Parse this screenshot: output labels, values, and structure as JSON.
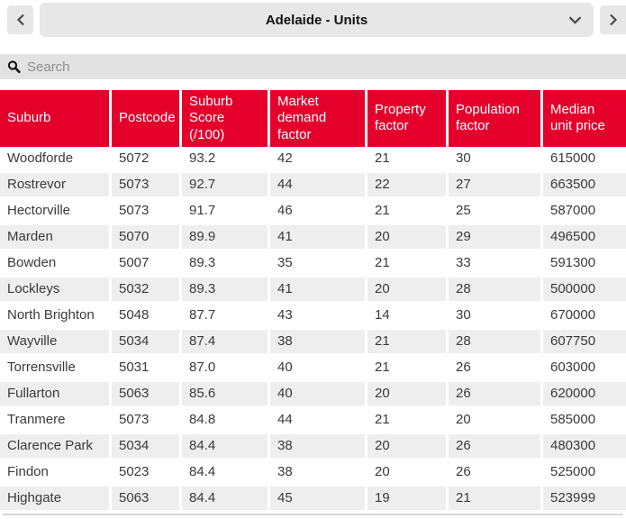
{
  "nav": {
    "title": "Adelaide - Units",
    "prev_icon": "chevron-left",
    "next_icon": "chevron-right",
    "dropdown_icon": "chevron-down"
  },
  "search": {
    "placeholder": "Search",
    "icon": "magnifier"
  },
  "colors": {
    "header_red": "#e4002b",
    "control_gray": "#e7e7e7",
    "searchbar_gray": "#e2e2e2",
    "stripe_gray": "#eeeeee",
    "text_dark": "#3a3a3a"
  },
  "table": {
    "columns": [
      "Suburb",
      "Postcode",
      "Suburb Score (/100)",
      "Market demand factor",
      "Property factor",
      "Population factor",
      "Median unit price"
    ],
    "rows": [
      [
        "Woodforde",
        "5072",
        "93.2",
        "42",
        "21",
        "30",
        "615000"
      ],
      [
        "Rostrevor",
        "5073",
        "92.7",
        "44",
        "22",
        "27",
        "663500"
      ],
      [
        "Hectorville",
        "5073",
        "91.7",
        "46",
        "21",
        "25",
        "587000"
      ],
      [
        "Marden",
        "5070",
        "89.9",
        "41",
        "20",
        "29",
        "496500"
      ],
      [
        "Bowden",
        "5007",
        "89.3",
        "35",
        "21",
        "33",
        "591300"
      ],
      [
        "Lockleys",
        "5032",
        "89.3",
        "41",
        "20",
        "28",
        "500000"
      ],
      [
        "North Brighton",
        "5048",
        "87.7",
        "43",
        "14",
        "30",
        "670000"
      ],
      [
        "Wayville",
        "5034",
        "87.4",
        "38",
        "21",
        "28",
        "607750"
      ],
      [
        "Torrensville",
        "5031",
        "87.0",
        "40",
        "21",
        "26",
        "603000"
      ],
      [
        "Fullarton",
        "5063",
        "85.6",
        "40",
        "20",
        "26",
        "620000"
      ],
      [
        "Tranmere",
        "5073",
        "84.8",
        "44",
        "21",
        "20",
        "585000"
      ],
      [
        "Clarence Park",
        "5034",
        "84.4",
        "38",
        "20",
        "26",
        "480300"
      ],
      [
        "Findon",
        "5023",
        "84.4",
        "38",
        "20",
        "26",
        "525000"
      ],
      [
        "Highgate",
        "5063",
        "84.4",
        "45",
        "19",
        "21",
        "523999"
      ]
    ]
  }
}
